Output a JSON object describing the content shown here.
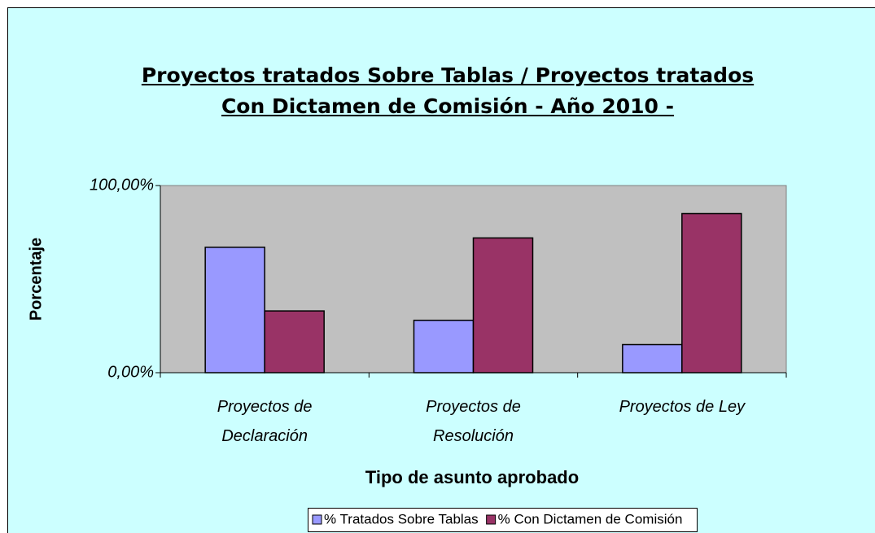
{
  "chart_data": {
    "type": "bar",
    "title": "Proyectos tratados Sobre Tablas / Proyectos tratados Con Dictamen de Comisión - Año 2010 -",
    "x_label": "Tipo de asunto aprobado",
    "y_label": "Porcentaje",
    "categories": [
      "Proyectos de Declaración",
      "Proyectos de Resolución",
      "Proyectos de Ley"
    ],
    "series": [
      {
        "name": "% Tratados Sobre Tablas",
        "color": "#9999ff",
        "values": [
          67,
          28,
          15
        ]
      },
      {
        "name": "% Con Dictamen de Comisión",
        "color": "#993366",
        "values": [
          33,
          72,
          85
        ]
      }
    ],
    "ylim": [
      0,
      100
    ],
    "yticks": [
      {
        "value": 0,
        "label": "0,00%"
      },
      {
        "value": 100,
        "label": "100,00%"
      }
    ],
    "legend": "bottom"
  }
}
